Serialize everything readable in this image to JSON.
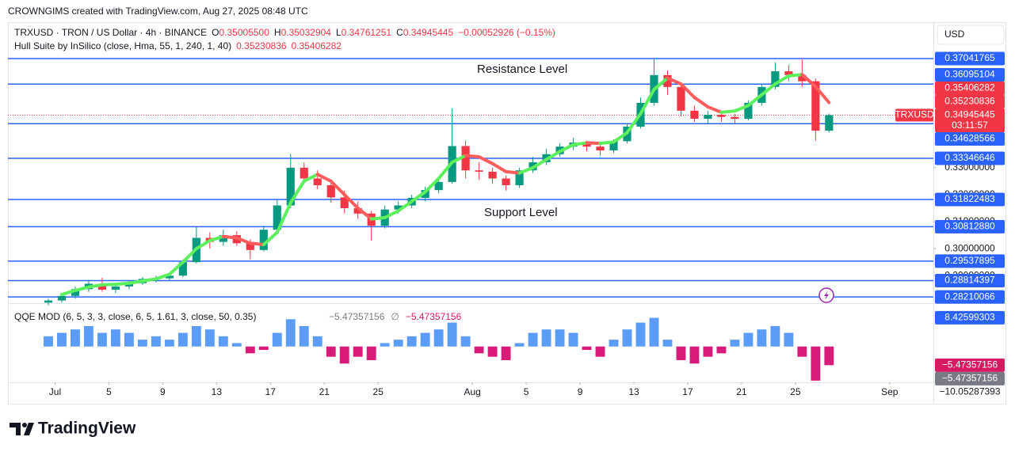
{
  "header": "CROWNGIMS created with TradingView.com, Aug 27, 2025 08:48 UTC",
  "branding": "TradingView",
  "chart_data": [
    {
      "type": "candlestick",
      "symbol_title": "TRXUSD · TRON / US Dollar · 4h · BINANCE",
      "ohlc": [
        {
          "key": "O",
          "text": "0.35005500"
        },
        {
          "key": "H",
          "text": "0.35032904"
        },
        {
          "key": "L",
          "text": "0.34761251"
        },
        {
          "key": "C",
          "text": "0.34945445"
        }
      ],
      "change": "−0.00052926 (−0.15%)",
      "currency": "USD",
      "annotations": [
        "Resistance Level",
        "Support Level"
      ],
      "up_color": "#089981",
      "down_color": "#f23645",
      "level_color": "#2962ff",
      "x": [
        "2025-06-30",
        "2025-07-01",
        "2025-07-02",
        "2025-07-03",
        "2025-07-04",
        "2025-07-05",
        "2025-07-06",
        "2025-07-07",
        "2025-07-08",
        "2025-07-09",
        "2025-07-10",
        "2025-07-11",
        "2025-07-12",
        "2025-07-13",
        "2025-07-14",
        "2025-07-15",
        "2025-07-16",
        "2025-07-17",
        "2025-07-18",
        "2025-07-19",
        "2025-07-20",
        "2025-07-21",
        "2025-07-22",
        "2025-07-23",
        "2025-07-24",
        "2025-07-25",
        "2025-07-26",
        "2025-07-27",
        "2025-07-28",
        "2025-07-29",
        "2025-07-30",
        "2025-07-31",
        "2025-08-01",
        "2025-08-02",
        "2025-08-03",
        "2025-08-04",
        "2025-08-05",
        "2025-08-06",
        "2025-08-07",
        "2025-08-08",
        "2025-08-09",
        "2025-08-10",
        "2025-08-11",
        "2025-08-12",
        "2025-08-13",
        "2025-08-14",
        "2025-08-15",
        "2025-08-16",
        "2025-08-17",
        "2025-08-18",
        "2025-08-19",
        "2025-08-20",
        "2025-08-21",
        "2025-08-22",
        "2025-08-23",
        "2025-08-24",
        "2025-08-25",
        "2025-08-26",
        "2025-08-27"
      ],
      "open": [
        0.28,
        0.2808,
        0.2825,
        0.285,
        0.287,
        0.2848,
        0.286,
        0.2872,
        0.2888,
        0.289,
        0.29,
        0.295,
        0.304,
        0.3025,
        0.305,
        0.302,
        0.2995,
        0.307,
        0.316,
        0.33,
        0.326,
        0.3235,
        0.319,
        0.315,
        0.313,
        0.3085,
        0.3145,
        0.316,
        0.3188,
        0.3217,
        0.3247,
        0.338,
        0.329,
        0.3285,
        0.326,
        0.3235,
        0.329,
        0.332,
        0.335,
        0.3378,
        0.3393,
        0.3378,
        0.3364,
        0.3398,
        0.3452,
        0.354,
        0.3643,
        0.3599,
        0.3511,
        0.3481,
        0.3496,
        0.3488,
        0.3481,
        0.354,
        0.3599,
        0.3657,
        0.3643,
        0.362,
        0.3437
      ],
      "high": [
        0.2815,
        0.283,
        0.286,
        0.2885,
        0.2892,
        0.287,
        0.288,
        0.2895,
        0.29,
        0.2905,
        0.296,
        0.308,
        0.306,
        0.307,
        0.3065,
        0.3035,
        0.3085,
        0.318,
        0.335,
        0.332,
        0.329,
        0.325,
        0.3215,
        0.3175,
        0.314,
        0.316,
        0.3175,
        0.32,
        0.323,
        0.326,
        0.352,
        0.34,
        0.332,
        0.33,
        0.327,
        0.33,
        0.334,
        0.337,
        0.339,
        0.341,
        0.34,
        0.339,
        0.3405,
        0.3465,
        0.356,
        0.3705,
        0.366,
        0.361,
        0.353,
        0.351,
        0.3505,
        0.35,
        0.355,
        0.361,
        0.369,
        0.368,
        0.37,
        0.363,
        0.35
      ],
      "low": [
        0.279,
        0.28,
        0.2815,
        0.284,
        0.284,
        0.2835,
        0.285,
        0.2865,
        0.2875,
        0.288,
        0.2895,
        0.2945,
        0.3,
        0.301,
        0.301,
        0.296,
        0.299,
        0.306,
        0.315,
        0.324,
        0.322,
        0.317,
        0.313,
        0.311,
        0.303,
        0.3075,
        0.313,
        0.315,
        0.3175,
        0.3205,
        0.324,
        0.326,
        0.3255,
        0.324,
        0.3215,
        0.3225,
        0.328,
        0.331,
        0.334,
        0.3365,
        0.336,
        0.3345,
        0.3355,
        0.339,
        0.3445,
        0.353,
        0.357,
        0.349,
        0.347,
        0.3465,
        0.347,
        0.3465,
        0.3475,
        0.353,
        0.359,
        0.362,
        0.36,
        0.34,
        0.343
      ],
      "close": [
        0.2808,
        0.2825,
        0.285,
        0.287,
        0.2848,
        0.286,
        0.2872,
        0.2888,
        0.289,
        0.29,
        0.295,
        0.304,
        0.3025,
        0.305,
        0.302,
        0.2995,
        0.307,
        0.316,
        0.33,
        0.326,
        0.3235,
        0.319,
        0.315,
        0.313,
        0.3085,
        0.3145,
        0.316,
        0.3188,
        0.3217,
        0.3247,
        0.338,
        0.329,
        0.3285,
        0.326,
        0.3235,
        0.329,
        0.332,
        0.335,
        0.3378,
        0.3393,
        0.3378,
        0.3364,
        0.3398,
        0.3452,
        0.354,
        0.3643,
        0.3599,
        0.3511,
        0.3481,
        0.3496,
        0.3488,
        0.3481,
        0.354,
        0.3599,
        0.3657,
        0.3643,
        0.362,
        0.3437,
        0.34945
      ],
      "xlim": [
        "2025-06-27T12:00:00Z",
        "2025-09-04T06:00:00Z"
      ],
      "xticks": [
        {
          "value": "2025-07-01",
          "label": "Jul"
        },
        {
          "value": "2025-07-05",
          "label": "5"
        },
        {
          "value": "2025-07-09",
          "label": "9"
        },
        {
          "value": "2025-07-13",
          "label": "13"
        },
        {
          "value": "2025-07-17",
          "label": "17"
        },
        {
          "value": "2025-07-21",
          "label": "21"
        },
        {
          "value": "2025-07-25",
          "label": "25"
        },
        {
          "value": "2025-08-01",
          "label": "Aug"
        },
        {
          "value": "2025-08-05",
          "label": "5"
        },
        {
          "value": "2025-08-09",
          "label": "9"
        },
        {
          "value": "2025-08-13",
          "label": "13"
        },
        {
          "value": "2025-08-17",
          "label": "17"
        },
        {
          "value": "2025-08-21",
          "label": "21"
        },
        {
          "value": "2025-08-25",
          "label": "25"
        },
        {
          "value": "2025-09-01",
          "label": "Sep"
        }
      ],
      "ylim": [
        0.2798,
        0.3839
      ],
      "yticks": [
        {
          "value": 0.29,
          "label": "0.29000000"
        },
        {
          "value": 0.3,
          "label": "0.30000000"
        },
        {
          "value": 0.31,
          "label": "0.31000000"
        },
        {
          "value": 0.32,
          "label": "0.32000000"
        },
        {
          "value": 0.33,
          "label": "0.33000000"
        }
      ],
      "grid": false,
      "levels": [
        {
          "value": 0.37041765,
          "label": "0.37041765"
        },
        {
          "value": 0.36095104,
          "label": "0.36095104"
        },
        {
          "value": 0.34628566,
          "label": "0.34628566"
        },
        {
          "value": 0.33346646,
          "label": "0.33346646"
        },
        {
          "value": 0.31822483,
          "label": "0.31822483"
        },
        {
          "value": 0.3081288,
          "label": "0.30812880"
        },
        {
          "value": 0.29537895,
          "label": "0.29537895"
        },
        {
          "value": 0.28814397,
          "label": "0.28814397"
        },
        {
          "value": 0.28210066,
          "label": "0.28210066"
        }
      ],
      "price_line": {
        "value": 0.34945445,
        "label": "0.34945445",
        "symbol": "TRXUSD",
        "countdown": "03:11:57",
        "color": "#f23645"
      },
      "indicator": {
        "name": "Hull Suite by InSilico (close, Hma, 55, 1, 240, 1, 40)",
        "legend": [
          "0.35230836",
          "0.35406282"
        ],
        "badges": [
          {
            "value": 0.35406282,
            "label": "0.35406282"
          },
          {
            "value": 0.35230836,
            "label": "0.35230836"
          }
        ],
        "up_color": "#5cf05c",
        "down_color": "#ff5c5c",
        "values": [
          null,
          0.283,
          0.2845,
          0.2858,
          0.2866,
          0.2868,
          0.2872,
          0.288,
          0.2888,
          0.2905,
          0.295,
          0.3,
          0.303,
          0.3045,
          0.304,
          0.302,
          0.3015,
          0.306,
          0.317,
          0.325,
          0.3275,
          0.325,
          0.32,
          0.315,
          0.311,
          0.3115,
          0.314,
          0.3175,
          0.321,
          0.326,
          0.332,
          0.3345,
          0.334,
          0.3315,
          0.3285,
          0.328,
          0.33,
          0.333,
          0.336,
          0.3385,
          0.3392,
          0.339,
          0.3395,
          0.343,
          0.35,
          0.359,
          0.3632,
          0.361,
          0.356,
          0.3525,
          0.3505,
          0.351,
          0.353,
          0.357,
          0.361,
          0.364,
          0.3645,
          0.36,
          0.3541
        ]
      }
    },
    {
      "type": "bar",
      "title": "QQE MOD (6, 5, 3, 3, close, 6, 5, 1.61, 3, close, 50, 0.35)",
      "legend": [
        "−5.47357156",
        "∅",
        "−5.47357156"
      ],
      "up_color": "#5b9cf6",
      "down_color": "#d81b78",
      "values": [
        3,
        4,
        5,
        6,
        4,
        5,
        4,
        2,
        3,
        2,
        4,
        6,
        5,
        3,
        1,
        -2,
        -1,
        4,
        8,
        6,
        3,
        -3,
        -5,
        -3,
        -4,
        1,
        2,
        3,
        4,
        5,
        7,
        3,
        -2,
        -3,
        -4,
        1,
        4,
        5,
        5,
        4,
        -1,
        -3,
        2,
        5,
        7,
        8.4,
        2,
        -4,
        -5,
        -3,
        -2,
        2,
        4,
        5,
        6,
        4,
        -3,
        -10,
        -5.47
      ],
      "ylim": [
        -10.5,
        12
      ],
      "badges": [
        {
          "value": 8.42599303,
          "label": "8.42599303",
          "color": "#2962ff"
        },
        {
          "value": -5.47357156,
          "label": "−5.47357156",
          "color": "#d81b60"
        },
        {
          "value": -5.47357156,
          "label": "−5.47357156",
          "color": "#787b86"
        },
        {
          "value": -10.05287393,
          "label": "−10.05287393"
        }
      ]
    }
  ]
}
